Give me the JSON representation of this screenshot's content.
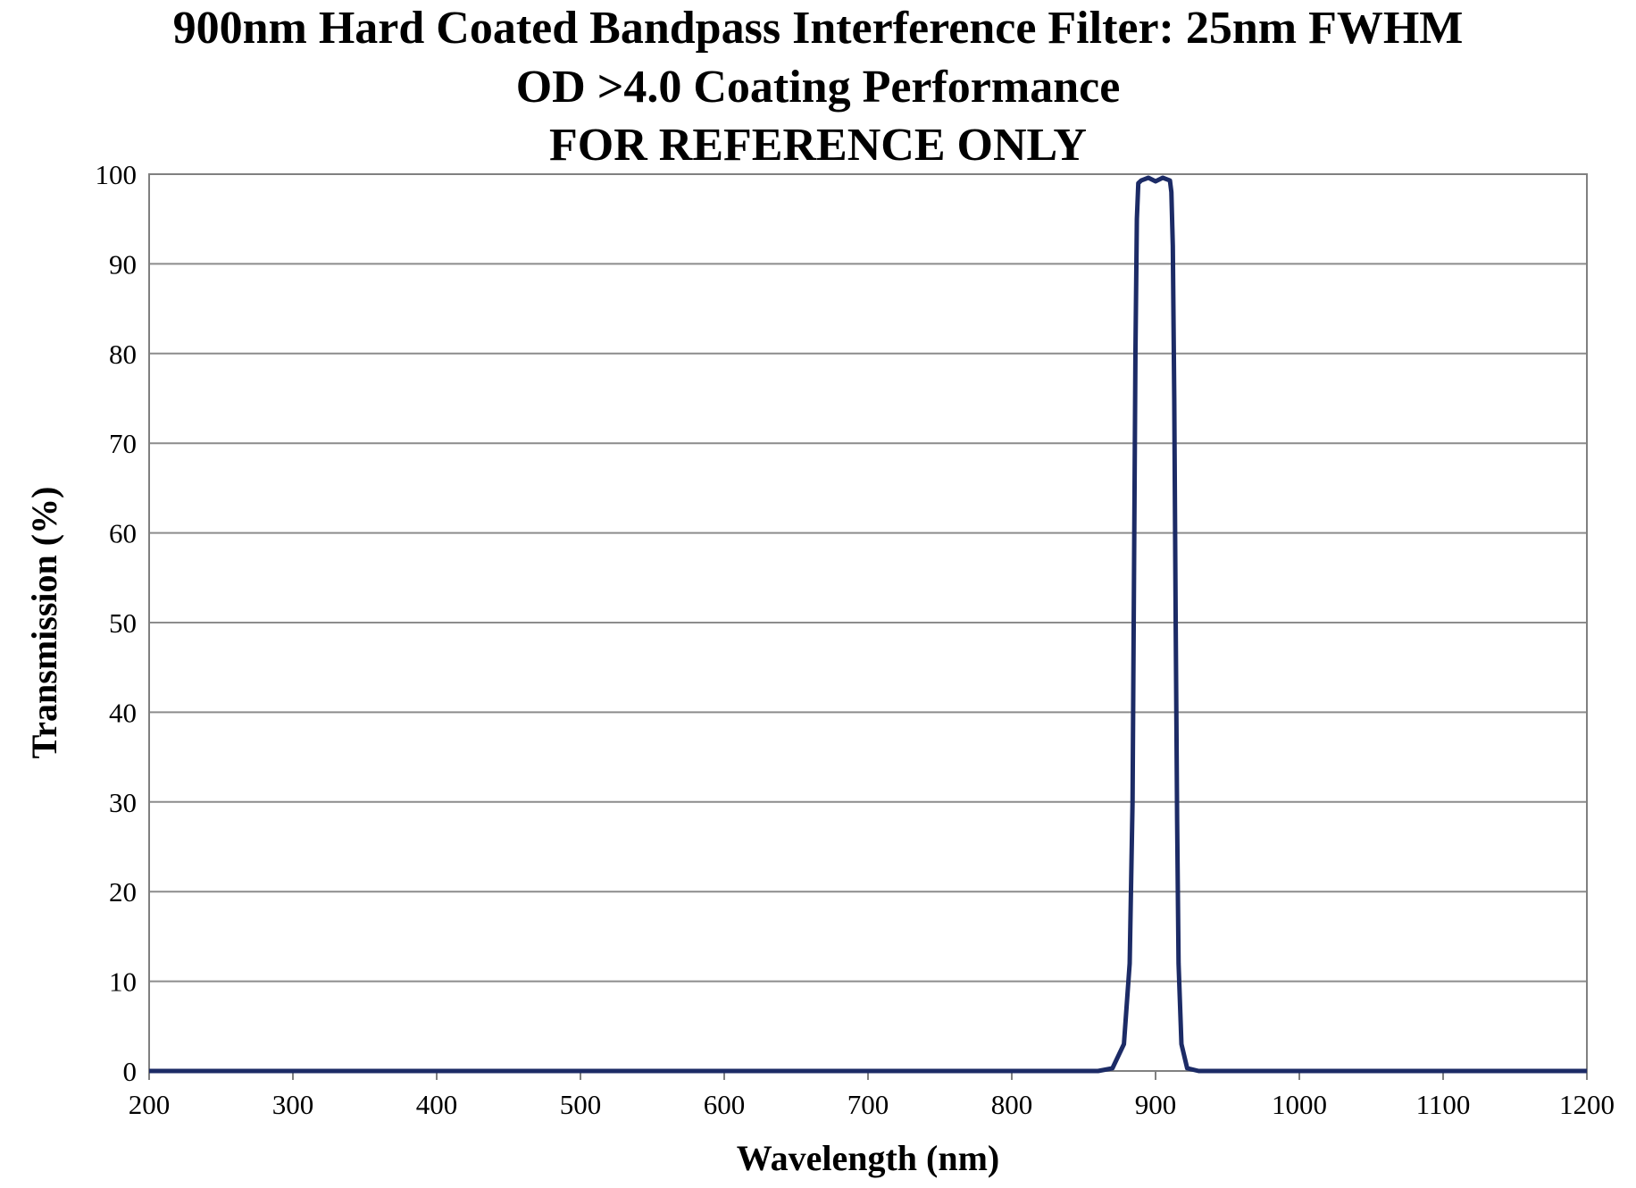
{
  "chart_data": {
    "type": "line",
    "title": "900nm Hard Coated Bandpass Interference Filter: 25nm FWHM",
    "subtitle": "OD >4.0 Coating Performance",
    "note": "FOR REFERENCE ONLY",
    "xlabel": "Wavelength (nm)",
    "ylabel": "Transmission (%)",
    "xlim": [
      200,
      1200
    ],
    "ylim": [
      0,
      100
    ],
    "xticks": [
      "200",
      "300",
      "400",
      "500",
      "600",
      "700",
      "800",
      "900",
      "1000",
      "1100",
      "1200"
    ],
    "yticks": [
      "0",
      "10",
      "20",
      "30",
      "40",
      "50",
      "60",
      "70",
      "80",
      "90",
      "100"
    ],
    "grid": "horizontal",
    "series_color": "#1c2b66",
    "series": [
      {
        "x": [
          200,
          860,
          870,
          878,
          882,
          884,
          885,
          886,
          887,
          888,
          890,
          895,
          900,
          905,
          910,
          911,
          912,
          913,
          914,
          915,
          916,
          918,
          922,
          930,
          1200
        ],
        "y": [
          0,
          0,
          0.3,
          3,
          12,
          30,
          55,
          80,
          95,
          99,
          99.3,
          99.6,
          99.2,
          99.6,
          99.3,
          98,
          92,
          75,
          50,
          28,
          12,
          3,
          0.3,
          0,
          0
        ]
      }
    ]
  }
}
